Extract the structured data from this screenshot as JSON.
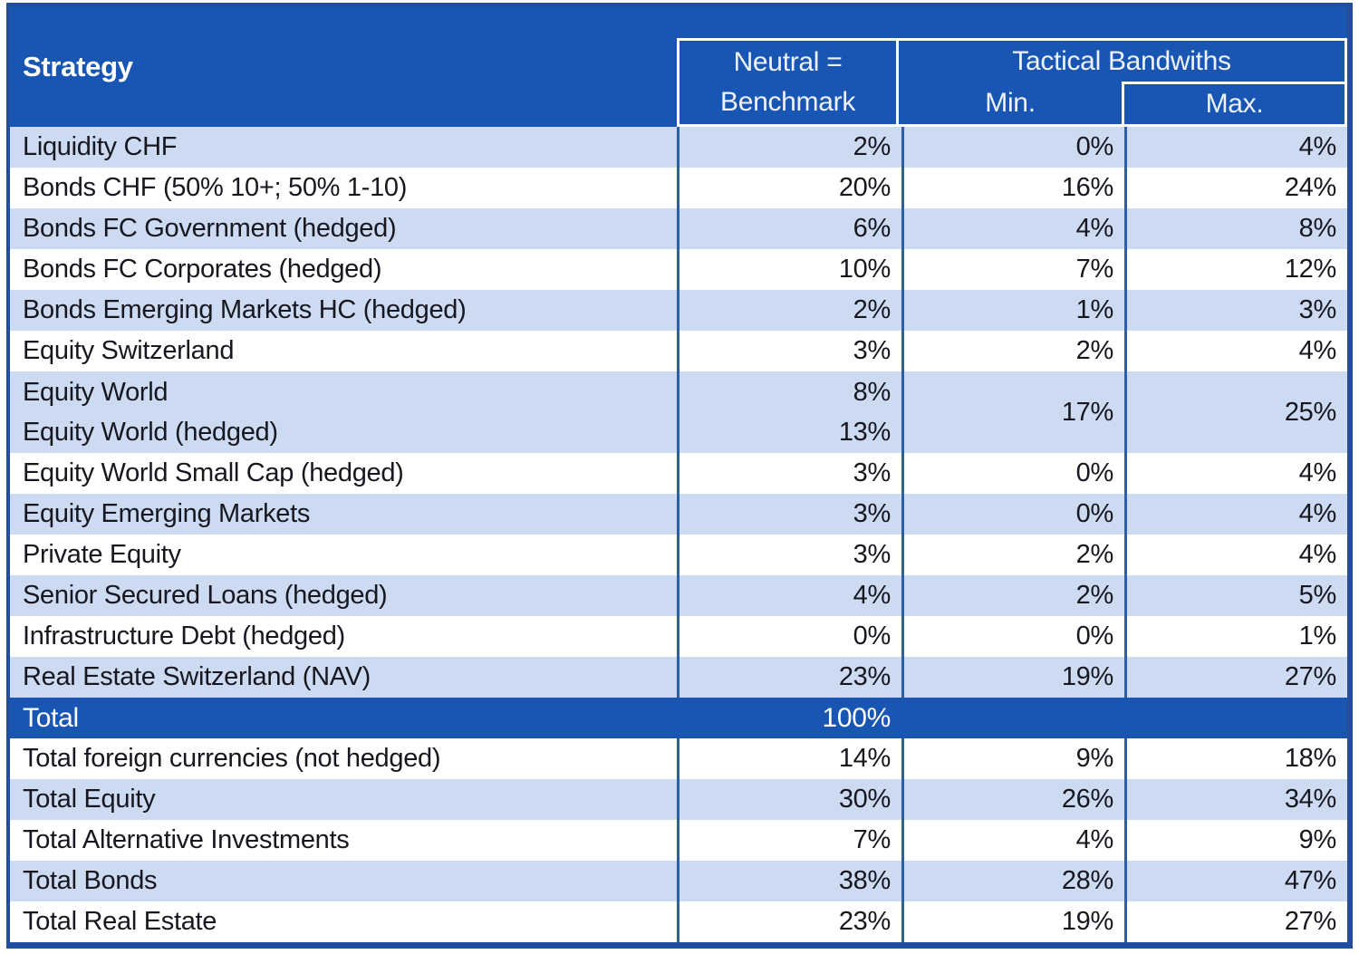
{
  "table": {
    "header": {
      "strategy": "Strategy",
      "benchmark_line1": "Neutral =",
      "benchmark_line2": "Benchmark",
      "tactical_group": "Tactical Bandwiths",
      "min": "Min.",
      "max": "Max."
    },
    "strategy_rows": [
      {
        "label": "Liquidity CHF",
        "benchmark": "2%",
        "min": "0%",
        "max": "4%"
      },
      {
        "label": "Bonds CHF (50% 10+; 50% 1-10)",
        "benchmark": "20%",
        "min": "16%",
        "max": "24%"
      },
      {
        "label": "Bonds FC Government (hedged)",
        "benchmark": "6%",
        "min": "4%",
        "max": "8%"
      },
      {
        "label": "Bonds FC Corporates (hedged)",
        "benchmark": "10%",
        "min": "7%",
        "max": "12%"
      },
      {
        "label": "Bonds Emerging Markets HC (hedged)",
        "benchmark": "2%",
        "min": "1%",
        "max": "3%"
      },
      {
        "label": "Equity Switzerland",
        "benchmark": "3%",
        "min": "2%",
        "max": "4%"
      },
      {
        "merged": true,
        "lines": [
          {
            "label": "Equity World",
            "benchmark": "8%"
          },
          {
            "label": "Equity World (hedged)",
            "benchmark": "13%"
          }
        ],
        "min": "17%",
        "max": "25%"
      },
      {
        "label": "Equity World Small Cap (hedged)",
        "benchmark": "3%",
        "min": "0%",
        "max": "4%"
      },
      {
        "label": "Equity Emerging Markets",
        "benchmark": "3%",
        "min": "0%",
        "max": "4%"
      },
      {
        "label": "Private Equity",
        "benchmark": "3%",
        "min": "2%",
        "max": "4%"
      },
      {
        "label": "Senior Secured Loans (hedged)",
        "benchmark": "4%",
        "min": "2%",
        "max": "5%"
      },
      {
        "label": "Infrastructure Debt (hedged)",
        "benchmark": "0%",
        "min": "0%",
        "max": "1%"
      },
      {
        "label": "Real Estate Switzerland (NAV)",
        "benchmark": "23%",
        "min": "19%",
        "max": "27%"
      }
    ],
    "total_row": {
      "label": "Total",
      "benchmark": "100%"
    },
    "summary_rows": [
      {
        "label": "Total foreign currencies (not hedged)",
        "benchmark": "14%",
        "min": "9%",
        "max": "18%"
      },
      {
        "label": "Total Equity",
        "benchmark": "30%",
        "min": "26%",
        "max": "34%"
      },
      {
        "label": "Total Alternative Investments",
        "benchmark": "7%",
        "min": "4%",
        "max": "9%"
      },
      {
        "label": "Total Bonds",
        "benchmark": "38%",
        "min": "28%",
        "max": "47%"
      },
      {
        "label": "Total Real Estate",
        "benchmark": "23%",
        "min": "19%",
        "max": "27%"
      }
    ],
    "colors": {
      "header_blue": "#1956b4",
      "row_shaded": "#ccdaf2",
      "row_plain": "#ffffff",
      "outer_border": "#234e9f",
      "grid_line": "#2f5ea8",
      "text_dark": "#17171f",
      "text_light": "#ffffff"
    }
  }
}
